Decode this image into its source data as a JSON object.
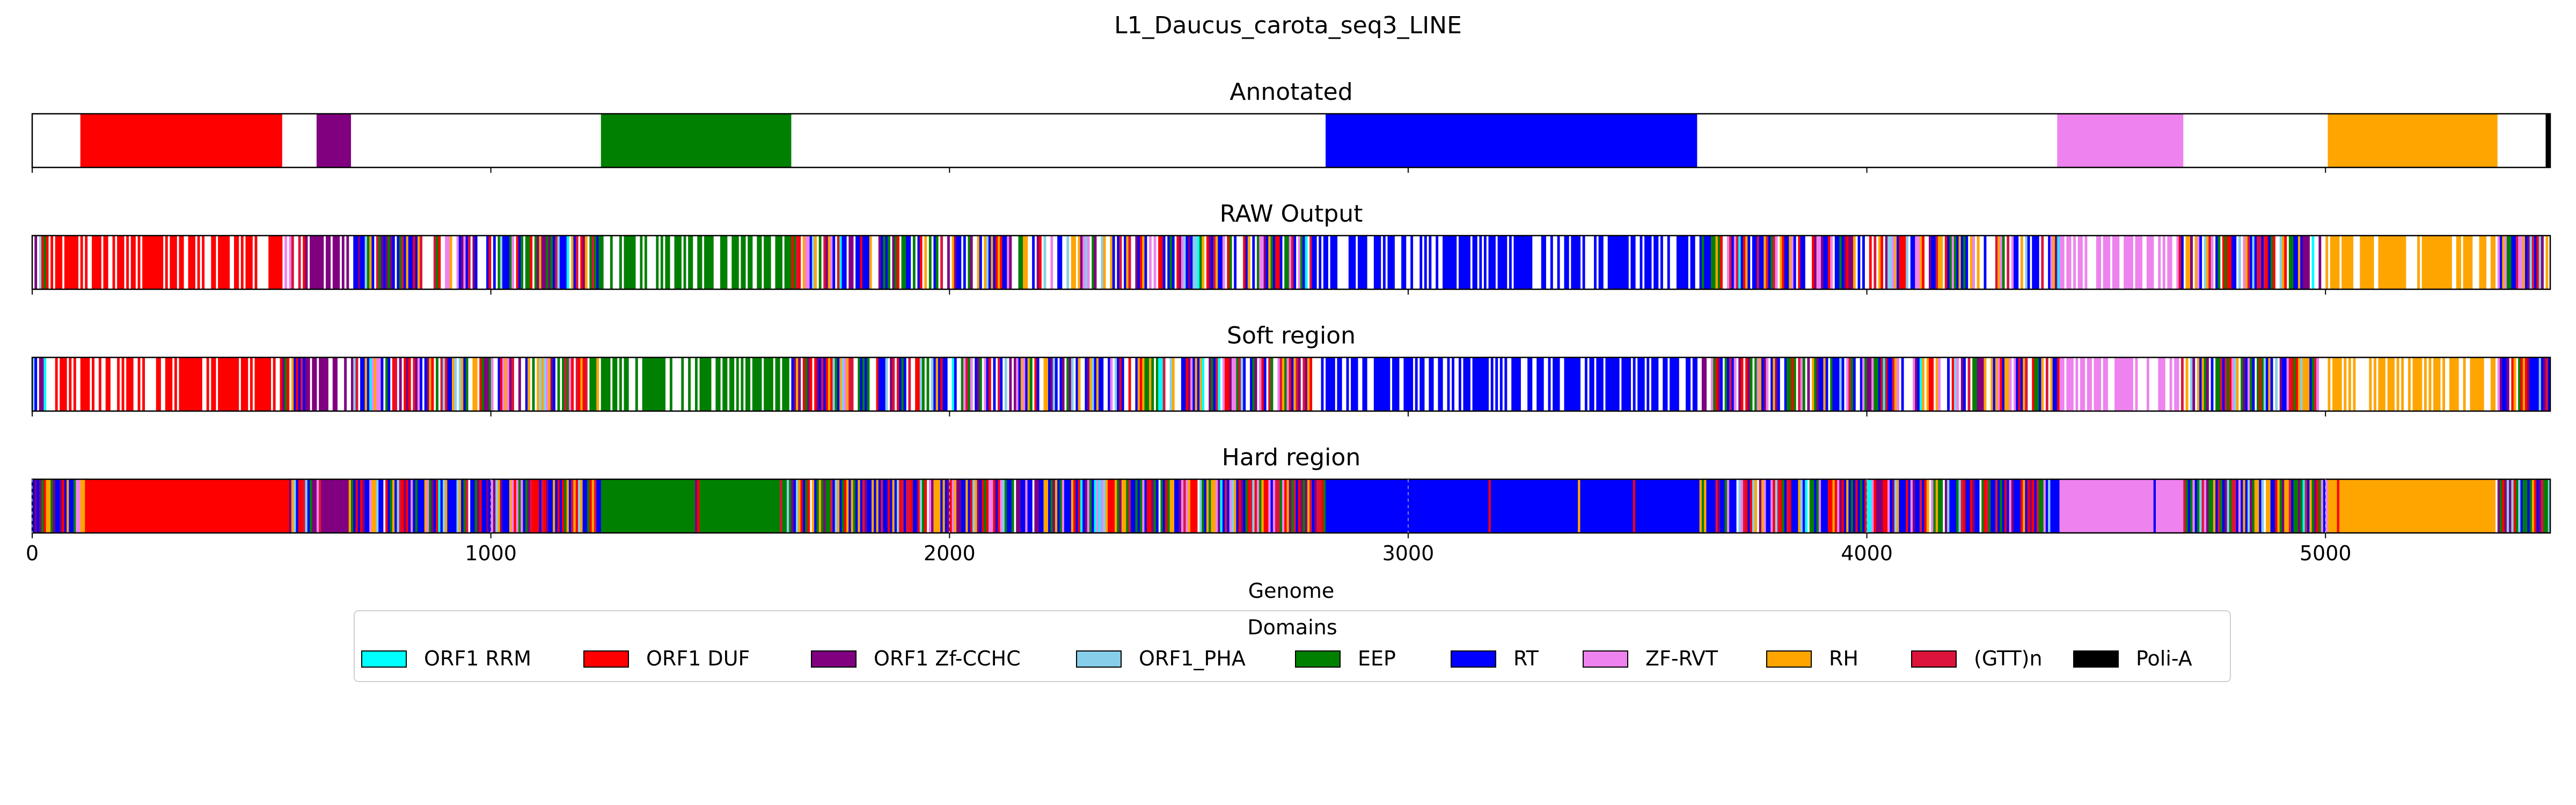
{
  "chart_data": {
    "type": "genome_track",
    "title": "L1_Daucus_carota_seq3_LINE",
    "xlabel": "Genome",
    "xlim": [
      0,
      5490
    ],
    "x_ticks": [
      0,
      1000,
      2000,
      3000,
      4000,
      5000
    ],
    "x_tick_labels": [
      "0",
      "1000",
      "2000",
      "3000",
      "4000",
      "5000"
    ],
    "grid": "dashed vertical gridlines on x ticks",
    "tracks": [
      {
        "title": "Annotated",
        "kind": "segments",
        "segments": [
          {
            "domain": "ORF1 DUF",
            "start": 105,
            "end": 545
          },
          {
            "domain": "ORF1 Zf-CCHC",
            "start": 620,
            "end": 695
          },
          {
            "domain": "EEP",
            "start": 1240,
            "end": 1655
          },
          {
            "domain": "RT",
            "start": 2820,
            "end": 3630
          },
          {
            "domain": "ZF-RVT",
            "start": 4415,
            "end": 4690
          },
          {
            "domain": "RH",
            "start": 5005,
            "end": 5375
          },
          {
            "domain": "Poli-A",
            "start": 5480,
            "end": 5490
          }
        ]
      },
      {
        "title": "RAW Output",
        "kind": "per-position",
        "mode": "sparse",
        "dominant_regions": [
          {
            "domain": "ORF1 DUF",
            "start": 30,
            "end": 545
          },
          {
            "domain": "ORF1 Zf-CCHC",
            "start": 595,
            "end": 700
          },
          {
            "domain": "EEP",
            "start": 1235,
            "end": 1655
          },
          {
            "domain": "RT",
            "start": 2790,
            "end": 3640
          },
          {
            "domain": "ZF-RVT",
            "start": 4420,
            "end": 4680
          },
          {
            "domain": "RH",
            "start": 5000,
            "end": 5370
          }
        ]
      },
      {
        "title": "Soft region",
        "kind": "per-position",
        "mode": "sparse",
        "dominant_regions": [
          {
            "domain": "ORF1 DUF",
            "start": 30,
            "end": 545
          },
          {
            "domain": "ORF1 Zf-CCHC",
            "start": 595,
            "end": 700
          },
          {
            "domain": "EEP",
            "start": 1235,
            "end": 1655
          },
          {
            "domain": "RT",
            "start": 2790,
            "end": 3640
          },
          {
            "domain": "ZF-RVT",
            "start": 4420,
            "end": 4680
          },
          {
            "domain": "RH",
            "start": 5000,
            "end": 5370
          }
        ]
      },
      {
        "title": "Hard region",
        "kind": "per-position",
        "mode": "dense",
        "dominant_regions": [
          {
            "domain": "ORF1 DUF",
            "start": 115,
            "end": 560
          },
          {
            "domain": "ORF1 Zf-CCHC",
            "start": 630,
            "end": 690
          },
          {
            "domain": "EEP",
            "start": 1240,
            "end": 1645
          },
          {
            "domain": "RT",
            "start": 2820,
            "end": 3635
          },
          {
            "domain": "ZF-RVT",
            "start": 4420,
            "end": 4690
          },
          {
            "domain": "RH",
            "start": 5005,
            "end": 5365
          }
        ]
      }
    ],
    "legend": {
      "title": "Domains",
      "placement": "bottom-center",
      "items": [
        {
          "label": "ORF1 RRM",
          "color": "#00ffff"
        },
        {
          "label": "ORF1 DUF",
          "color": "#ff0000"
        },
        {
          "label": "ORF1 Zf-CCHC",
          "color": "#800080"
        },
        {
          "label": "ORF1_PHA",
          "color": "#87ceeb"
        },
        {
          "label": "EEP",
          "color": "#008000"
        },
        {
          "label": "RT",
          "color": "#0000ff"
        },
        {
          "label": "ZF-RVT",
          "color": "#ee82ee"
        },
        {
          "label": "RH",
          "color": "#ffa500"
        },
        {
          "label": "(GTT)n",
          "color": "#dc143c"
        },
        {
          "label": "Poli-A",
          "color": "#000000"
        }
      ]
    }
  }
}
